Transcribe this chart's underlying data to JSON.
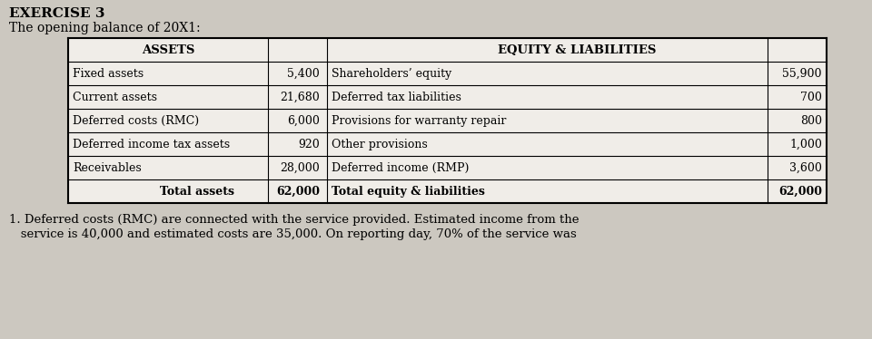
{
  "title": "EXERCISE 3",
  "subtitle": "The opening balance of 20X1:",
  "bg_color": "#ccc8c0",
  "table_bg": "#f0ede8",
  "header_assets": "ASSETS",
  "header_eq_liab": "EQUITY & LIABILITIES",
  "assets_rows": [
    [
      "Fixed assets",
      "5,400"
    ],
    [
      "Current assets",
      "21,680"
    ],
    [
      "Deferred costs (RMC)",
      "6,000"
    ],
    [
      "Deferred income tax assets",
      "920"
    ],
    [
      "Receivables",
      "28,000"
    ]
  ],
  "assets_total": [
    "Total assets",
    "62,000"
  ],
  "equity_rows": [
    [
      "Shareholders’ equity",
      "55,900"
    ],
    [
      "Deferred tax liabilities",
      "700"
    ],
    [
      "Provisions for warranty repair",
      "800"
    ],
    [
      "Other provisions",
      "1,000"
    ],
    [
      "Deferred income (RMP)",
      "3,600"
    ]
  ],
  "equity_total": [
    "Total equity & liabilities",
    "62,000"
  ],
  "footnote_line1": "1. Deferred costs (RMC) are connected with the service provided. Estimated income from the",
  "footnote_line2": "   service is 40,000 and estimated costs are 35,000. On reporting day, 70% of the service was"
}
